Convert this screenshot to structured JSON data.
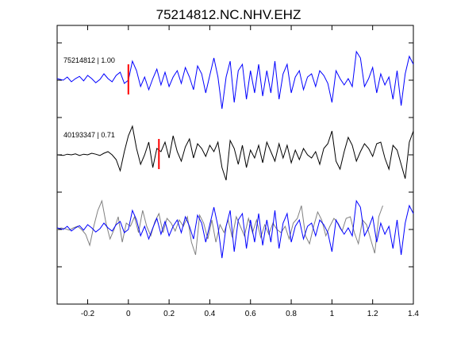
{
  "chart_data": {
    "type": "line",
    "title": "75214812.NC.NHV.EHZ",
    "xlabel": "",
    "ylabel": "",
    "xlim": [
      -0.35,
      1.4
    ],
    "x_ticks": [
      -0.2,
      0,
      0.2,
      0.4,
      0.6,
      0.8,
      1,
      1.2,
      1.4
    ],
    "x_tick_labels": [
      "-0.2",
      "0",
      "0.2",
      "0.4",
      "0.6",
      "0.8",
      "1",
      "1.2",
      "1.4"
    ],
    "grid": false,
    "traces": [
      {
        "label": "75214812 | 1.00",
        "color": "#0000ff",
        "pick_time": 0.0,
        "baseline": 3.0,
        "x": [
          -0.35,
          -0.32,
          -0.3,
          -0.28,
          -0.26,
          -0.24,
          -0.22,
          -0.2,
          -0.18,
          -0.16,
          -0.14,
          -0.12,
          -0.1,
          -0.08,
          -0.06,
          -0.04,
          -0.02,
          0,
          0.02,
          0.04,
          0.06,
          0.08,
          0.1,
          0.12,
          0.14,
          0.16,
          0.18,
          0.2,
          0.22,
          0.24,
          0.26,
          0.28,
          0.3,
          0.32,
          0.34,
          0.36,
          0.38,
          0.4,
          0.42,
          0.44,
          0.46,
          0.48,
          0.5,
          0.52,
          0.54,
          0.56,
          0.58,
          0.6,
          0.62,
          0.64,
          0.66,
          0.68,
          0.7,
          0.72,
          0.74,
          0.76,
          0.78,
          0.8,
          0.82,
          0.84,
          0.86,
          0.88,
          0.9,
          0.92,
          0.94,
          0.96,
          0.98,
          1,
          1.02,
          1.04,
          1.06,
          1.08,
          1.1,
          1.12,
          1.14,
          1.16,
          1.18,
          1.2,
          1.22,
          1.24,
          1.26,
          1.28,
          1.3,
          1.32,
          1.34,
          1.36,
          1.38,
          1.4
        ],
        "y": [
          0.05,
          0.0,
          0.1,
          -0.05,
          0.05,
          0.12,
          -0.02,
          0.15,
          0.05,
          -0.08,
          0.02,
          0.2,
          0.05,
          -0.05,
          0.15,
          0.25,
          -0.1,
          0.0,
          0.6,
          0.3,
          -0.2,
          0.1,
          -0.3,
          0.05,
          0.35,
          -0.15,
          0.25,
          -0.2,
          0.1,
          0.3,
          -0.1,
          0.4,
          0.1,
          -0.3,
          0.45,
          0.2,
          -0.4,
          0.15,
          0.7,
          0.1,
          -0.9,
          0.1,
          0.6,
          -0.7,
          0.3,
          0.5,
          -0.6,
          0.3,
          -0.4,
          0.5,
          -0.5,
          0.3,
          -0.4,
          0.6,
          -0.6,
          0.2,
          0.5,
          -0.4,
          0.1,
          0.3,
          -0.3,
          0.1,
          0.2,
          -0.2,
          0.3,
          0.15,
          -0.1,
          -0.7,
          0.3,
          0.05,
          -0.15,
          0.05,
          -0.2,
          0.9,
          0.7,
          -0.2,
          0.05,
          0.4,
          -0.4,
          0.2,
          -0.15,
          0.1,
          -0.6,
          0.3,
          -0.8,
          0.2,
          0.75,
          0.5
        ]
      },
      {
        "label": "40193347 | 0.71",
        "color": "#000000",
        "pick_time": 0.15,
        "baseline": 2.0,
        "x": [
          -0.35,
          -0.32,
          -0.3,
          -0.28,
          -0.26,
          -0.24,
          -0.22,
          -0.2,
          -0.18,
          -0.16,
          -0.14,
          -0.12,
          -0.1,
          -0.08,
          -0.06,
          -0.04,
          -0.02,
          0,
          0.02,
          0.04,
          0.06,
          0.08,
          0.1,
          0.12,
          0.14,
          0.16,
          0.18,
          0.2,
          0.22,
          0.24,
          0.26,
          0.28,
          0.3,
          0.32,
          0.34,
          0.36,
          0.38,
          0.4,
          0.42,
          0.44,
          0.46,
          0.48,
          0.5,
          0.52,
          0.54,
          0.56,
          0.58,
          0.6,
          0.62,
          0.64,
          0.66,
          0.68,
          0.7,
          0.72,
          0.74,
          0.76,
          0.78,
          0.8,
          0.82,
          0.84,
          0.86,
          0.88,
          0.9,
          0.92,
          0.94,
          0.96,
          0.98,
          1,
          1.02,
          1.04,
          1.06,
          1.08,
          1.1,
          1.12,
          1.14,
          1.16,
          1.18,
          1.2,
          1.22,
          1.24,
          1.26,
          1.28,
          1.3,
          1.32,
          1.34,
          1.36,
          1.38,
          1.4
        ],
        "y": [
          0.0,
          -0.02,
          0.02,
          0.0,
          0.03,
          -0.02,
          0.02,
          0.0,
          0.05,
          0.02,
          -0.02,
          0.05,
          0.1,
          0.0,
          -0.15,
          -0.5,
          0.1,
          0.6,
          0.9,
          0.2,
          -0.3,
          0.0,
          0.4,
          -0.4,
          0.2,
          0.1,
          0.4,
          -0.1,
          0.6,
          0.1,
          -0.2,
          0.25,
          0.5,
          -0.1,
          0.35,
          0.2,
          -0.05,
          0.3,
          0.1,
          0.4,
          -0.4,
          -0.8,
          0.45,
          0.2,
          -0.3,
          0.3,
          -0.4,
          0.15,
          -0.1,
          0.3,
          -0.25,
          0.4,
          0.1,
          -0.2,
          0.35,
          -0.1,
          0.3,
          -0.25,
          0.15,
          -0.15,
          0.2,
          0.0,
          -0.1,
          0.1,
          -0.3,
          0.2,
          0.35,
          0.75,
          -0.2,
          -0.45,
          0.1,
          0.55,
          0.3,
          -0.2,
          0.1,
          0.35,
          0.2,
          -0.05,
          0.35,
          0.4,
          -0.1,
          -0.45,
          0.3,
          0.15,
          -0.3,
          -0.75,
          0.4,
          0.75
        ]
      }
    ],
    "overlay": {
      "baseline": 1.0,
      "gray_color": "#808080",
      "blue_color": "#0000ff"
    }
  }
}
